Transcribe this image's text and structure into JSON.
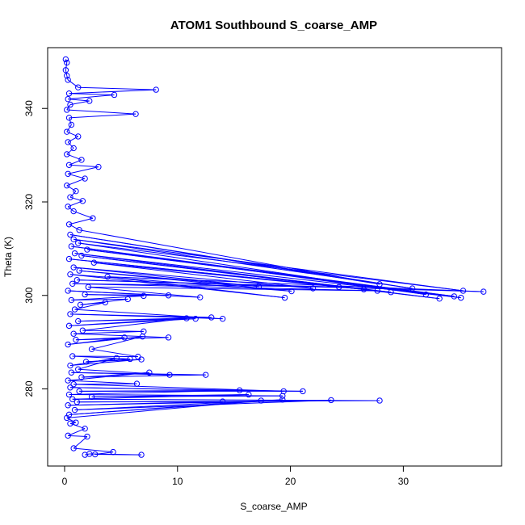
{
  "chart_data": {
    "type": "line",
    "title": "ATOM1 Southbound S_coarse_AMP",
    "xlabel": "S_coarse_AMP",
    "ylabel": "Theta (K)",
    "xlim": [
      -1.5,
      38.7
    ],
    "ylim": [
      263.5,
      353
    ],
    "xticks": [
      0,
      10,
      20,
      30
    ],
    "yticks": [
      280,
      300,
      320,
      340
    ],
    "grid": false,
    "legend": "none",
    "series_color": "#0000ff",
    "marker": "open-circle",
    "series": [
      {
        "points": [
          [
            0.1,
            350.5
          ],
          [
            0.2,
            349.8
          ],
          [
            0.1,
            348.2
          ],
          [
            0.2,
            347.0
          ],
          [
            0.3,
            346.1
          ],
          [
            1.2,
            344.5
          ],
          [
            8.1,
            344.0
          ],
          [
            0.4,
            343.2
          ],
          [
            4.4,
            342.9
          ],
          [
            0.3,
            342.0
          ],
          [
            2.2,
            341.6
          ],
          [
            0.5,
            340.8
          ],
          [
            0.2,
            339.7
          ],
          [
            6.3,
            338.8
          ],
          [
            0.4,
            338.0
          ],
          [
            0.6,
            336.5
          ],
          [
            0.2,
            335.0
          ],
          [
            1.2,
            334.0
          ],
          [
            0.3,
            332.8
          ],
          [
            0.8,
            331.5
          ],
          [
            0.2,
            330.2
          ],
          [
            1.5,
            329.0
          ],
          [
            0.4,
            327.9
          ],
          [
            3.0,
            327.5
          ],
          [
            0.3,
            326.0
          ],
          [
            1.8,
            325.0
          ],
          [
            0.2,
            323.5
          ],
          [
            1.0,
            322.3
          ],
          [
            0.5,
            321.0
          ],
          [
            1.6,
            320.2
          ],
          [
            0.3,
            319.0
          ],
          [
            0.8,
            318.0
          ],
          [
            2.5,
            316.5
          ],
          [
            0.4,
            315.2
          ],
          [
            1.3,
            314.0
          ],
          [
            27.9,
            302.4
          ],
          [
            0.5,
            313.0
          ],
          [
            30.8,
            301.5
          ],
          [
            0.8,
            312.0
          ],
          [
            35.3,
            301.0
          ],
          [
            1.2,
            311.2
          ],
          [
            32.0,
            300.2
          ],
          [
            0.6,
            310.5
          ],
          [
            34.5,
            299.8
          ],
          [
            2.0,
            309.8
          ],
          [
            35.1,
            299.5
          ],
          [
            0.9,
            309.0
          ],
          [
            33.2,
            299.3
          ],
          [
            1.5,
            308.5
          ],
          [
            28.9,
            300.7
          ],
          [
            0.4,
            307.8
          ],
          [
            26.5,
            301.3
          ],
          [
            2.6,
            307.0
          ],
          [
            22.0,
            301.5
          ],
          [
            0.8,
            306.0
          ],
          [
            17.2,
            301.9
          ],
          [
            1.3,
            305.3
          ],
          [
            20.1,
            300.9
          ],
          [
            0.5,
            304.5
          ],
          [
            19.5,
            299.5
          ],
          [
            3.8,
            304.0
          ],
          [
            37.1,
            300.8
          ],
          [
            1.1,
            303.3
          ],
          [
            24.3,
            301.8
          ],
          [
            0.7,
            302.5
          ],
          [
            27.7,
            301.0
          ],
          [
            2.1,
            301.8
          ],
          [
            12.0,
            299.6
          ],
          [
            0.3,
            301.0
          ],
          [
            9.2,
            300.0
          ],
          [
            1.8,
            300.2
          ],
          [
            7.0,
            299.9
          ],
          [
            0.6,
            299.0
          ],
          [
            5.6,
            299.2
          ],
          [
            1.4,
            298.0
          ],
          [
            3.6,
            298.5
          ],
          [
            0.9,
            297.0
          ],
          [
            14.0,
            295.0
          ],
          [
            0.5,
            296.0
          ],
          [
            13.0,
            295.3
          ],
          [
            1.2,
            294.5
          ],
          [
            11.6,
            295.0
          ],
          [
            0.4,
            293.5
          ],
          [
            10.8,
            295.1
          ],
          [
            1.6,
            292.5
          ],
          [
            7.0,
            292.3
          ],
          [
            0.8,
            291.8
          ],
          [
            9.2,
            291.0
          ],
          [
            1.0,
            290.5
          ],
          [
            5.3,
            291.0
          ],
          [
            0.3,
            289.5
          ],
          [
            6.9,
            291.2
          ],
          [
            2.4,
            288.5
          ],
          [
            6.5,
            286.9
          ],
          [
            0.7,
            287.0
          ],
          [
            5.8,
            286.4
          ],
          [
            1.9,
            285.8
          ],
          [
            6.8,
            286.3
          ],
          [
            0.5,
            285.0
          ],
          [
            4.6,
            286.6
          ],
          [
            1.2,
            284.2
          ],
          [
            9.3,
            283.0
          ],
          [
            0.6,
            283.5
          ],
          [
            12.5,
            283.0
          ],
          [
            1.5,
            282.5
          ],
          [
            7.5,
            283.5
          ],
          [
            0.3,
            281.8
          ],
          [
            6.4,
            281.1
          ],
          [
            0.8,
            281.0
          ],
          [
            19.4,
            279.5
          ],
          [
            0.5,
            280.3
          ],
          [
            21.1,
            279.5
          ],
          [
            1.3,
            279.5
          ],
          [
            15.5,
            279.7
          ],
          [
            0.4,
            278.8
          ],
          [
            19.3,
            278.5
          ],
          [
            2.4,
            278.3
          ],
          [
            16.3,
            278.8
          ],
          [
            0.7,
            277.8
          ],
          [
            27.9,
            277.5
          ],
          [
            1.1,
            277.2
          ],
          [
            14.0,
            277.3
          ],
          [
            0.3,
            276.5
          ],
          [
            23.6,
            277.6
          ],
          [
            0.9,
            275.5
          ],
          [
            19.3,
            277.7
          ],
          [
            0.4,
            274.5
          ],
          [
            17.4,
            277.5
          ],
          [
            0.2,
            273.8
          ],
          [
            1.0,
            272.8
          ],
          [
            0.5,
            272.6
          ],
          [
            1.8,
            271.5
          ],
          [
            0.3,
            270.0
          ],
          [
            2.0,
            269.8
          ],
          [
            0.8,
            267.3
          ],
          [
            4.3,
            266.5
          ],
          [
            2.7,
            266.0
          ],
          [
            6.8,
            265.9
          ],
          [
            2.2,
            266.1
          ],
          [
            1.8,
            265.9
          ]
        ]
      }
    ]
  }
}
